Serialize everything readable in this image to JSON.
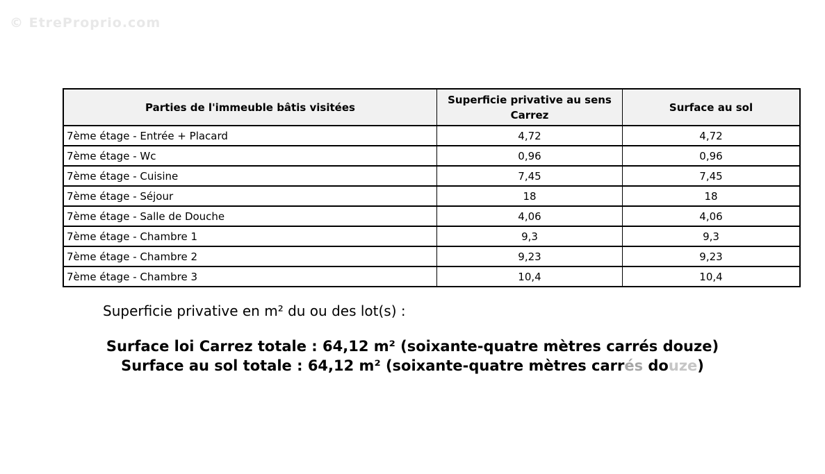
{
  "watermark": {
    "text": "© EtreProprio.com"
  },
  "table": {
    "headers": {
      "parties": "Parties de l'immeuble bâtis visitées",
      "carrez": "Superficie privative au sens Carrez",
      "sol": "Surface au sol"
    },
    "rows": [
      {
        "parties": "7ème étage - Entrée + Placard",
        "carrez": "4,72",
        "sol": "4,72"
      },
      {
        "parties": "7ème étage - Wc",
        "carrez": "0,96",
        "sol": "0,96"
      },
      {
        "parties": "7ème étage - Cuisine",
        "carrez": "7,45",
        "sol": "7,45"
      },
      {
        "parties": "7ème étage - Séjour",
        "carrez": "18",
        "sol": "18"
      },
      {
        "parties": "7ème étage - Salle de Douche",
        "carrez": "4,06",
        "sol": "4,06"
      },
      {
        "parties": "7ème étage - Chambre 1",
        "carrez": "9,3",
        "sol": "9,3"
      },
      {
        "parties": "7ème étage - Chambre 2",
        "carrez": "9,23",
        "sol": "9,23"
      },
      {
        "parties": "7ème étage - Chambre 3",
        "carrez": "10,4",
        "sol": "10,4"
      }
    ]
  },
  "caption": "Superficie privative en m² du ou des lot(s) :",
  "totals": {
    "carrez_total_line": "Surface loi Carrez totale : 64,12 m² (soixante-quatre mètres carrés douze)",
    "sol_total_line_parts": [
      {
        "text": "Surface au sol totale : 64,12 m² (soixante-quatre mètres carr",
        "tone": "normal"
      },
      {
        "text": "és",
        "tone": "faded"
      },
      {
        "text": " do",
        "tone": "normal"
      },
      {
        "text": "uze",
        "tone": "faded-light"
      },
      {
        "text": ")",
        "tone": "normal"
      }
    ]
  },
  "colors": {
    "header_bg": "#f1f1f1",
    "border": "#000000",
    "faded": "#a6a6a6",
    "faded_light": "#c6c6c6",
    "watermark": "#e8e8e8"
  }
}
